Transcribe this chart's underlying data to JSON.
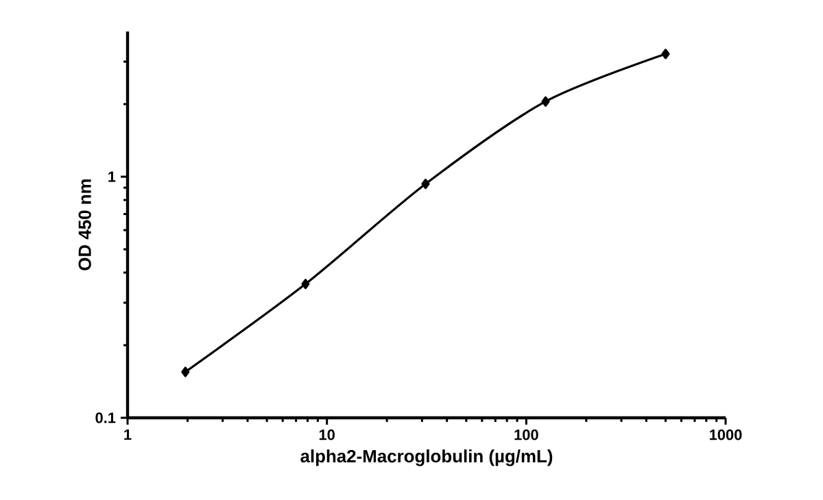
{
  "chart_data": {
    "type": "line",
    "xlabel": "alpha2-Macroglobulin (µg/mL)",
    "ylabel": "OD 450 nm",
    "x": [
      1.95,
      7.8125,
      31.25,
      125,
      500
    ],
    "series": [
      {
        "color": "#000000",
        "values": [
          0.155,
          0.359,
          0.933,
          2.05,
          3.23
        ]
      }
    ],
    "log": "xy",
    "xlim": [
      1,
      1000
    ],
    "ylim": [
      0.1,
      4
    ],
    "xticks": [
      1,
      10,
      100,
      1000
    ],
    "yticks": [
      0.1,
      1
    ],
    "marker": "diamond",
    "line_style": "solid",
    "grid": false
  }
}
